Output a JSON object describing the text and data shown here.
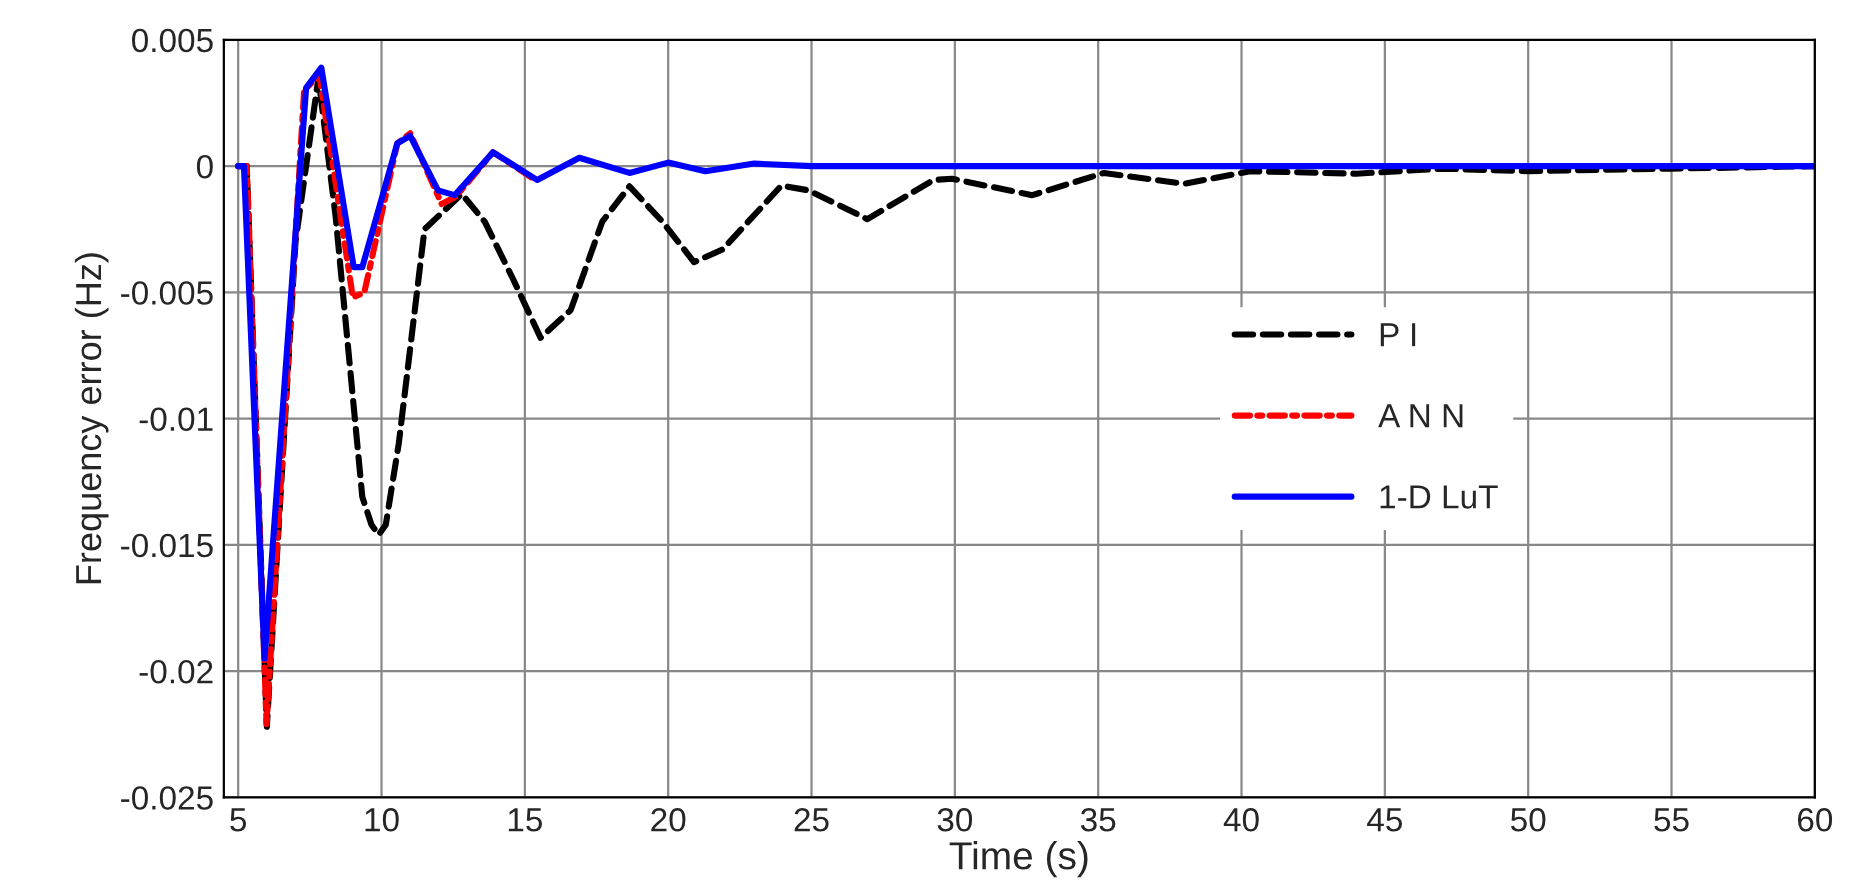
{
  "chart_data": {
    "type": "line",
    "xlabel": "Time (s)",
    "ylabel": "Frequency error (Hz)",
    "xlim": [
      4.5,
      60
    ],
    "ylim": [
      -0.025,
      0.005
    ],
    "xticks": [
      5,
      10,
      15,
      20,
      25,
      30,
      35,
      40,
      45,
      50,
      55,
      60
    ],
    "yticks": [
      0.005,
      0,
      -0.005,
      -0.01,
      -0.015,
      -0.02,
      -0.025
    ],
    "grid": true,
    "legend": "right",
    "marker": "none",
    "series": [
      {
        "name": "P I",
        "color": "#000000",
        "line_style": "dashed",
        "x": [
          5,
          5.3,
          6.0,
          7.0,
          7.8,
          8.4,
          9.33,
          9.65,
          9.9,
          10.15,
          10.6,
          11.5,
          12.8,
          13.6,
          14.6,
          15.55,
          16.6,
          17.7,
          18.65,
          19.8,
          20.9,
          21.9,
          23.95,
          24.9,
          26.95,
          29.25,
          29.9,
          32.7,
          35.2,
          38.0,
          40.3,
          44,
          47,
          50,
          55,
          60
        ],
        "values": [
          0,
          0,
          -0.0222,
          -0.003,
          0.0035,
          -0.002,
          -0.0131,
          -0.0142,
          -0.0146,
          -0.0142,
          -0.011,
          -0.0025,
          -0.0011,
          -0.0022,
          -0.0045,
          -0.0068,
          -0.0057,
          -0.0022,
          -0.0008,
          -0.0022,
          -0.0038,
          -0.0033,
          -0.00077,
          -0.00096,
          -0.0021,
          -0.00055,
          -0.0005,
          -0.00115,
          -0.00027,
          -0.0007,
          -0.0002,
          -0.0003,
          -0.0001,
          -0.0002,
          -0.0001,
          0
        ]
      },
      {
        "name": "A N N",
        "color": "#ff0000",
        "line_style": "dashdot",
        "x": [
          5,
          5.3,
          5.99,
          7.3,
          7.83,
          9.0,
          9.4,
          10.55,
          11.0,
          12.1,
          12.6,
          13.89,
          15.43
        ],
        "values": [
          0,
          0,
          -0.0221,
          0.003,
          0.0036,
          -0.0052,
          -0.005,
          0.0009,
          0.0013,
          -0.0015,
          -0.0012,
          0.00055,
          -0.0006
        ]
      },
      {
        "name": "1-D LuT",
        "color": "#0000ff",
        "line_style": "solid",
        "x": [
          5,
          5.2,
          5.92,
          7.37,
          7.9,
          9.03,
          9.33,
          10.55,
          11.0,
          11.97,
          12.55,
          13.89,
          15.43,
          16.9,
          18.65,
          20,
          21.3,
          23,
          25,
          30,
          40,
          50,
          60
        ],
        "values": [
          0,
          0,
          -0.0195,
          0.0031,
          0.0039,
          -0.004,
          -0.004,
          0.0009,
          0.0012,
          -0.00096,
          -0.00115,
          0.00055,
          -0.00055,
          0.00033,
          -0.00027,
          0.00014,
          -0.0002,
          0.0001,
          0,
          0,
          0,
          0,
          0
        ]
      }
    ]
  }
}
